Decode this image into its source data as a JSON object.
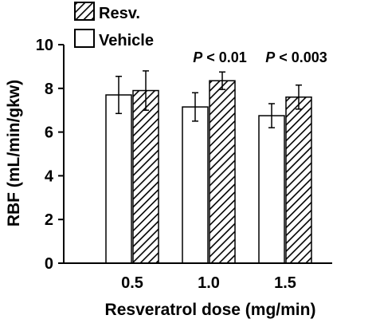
{
  "chart_data": {
    "type": "bar",
    "xlabel": "Resveratrol dose (mg/min)",
    "ylabel": "RBF (mL/min/gkw)",
    "ylim": [
      0,
      10
    ],
    "yticks": [
      0,
      2,
      4,
      6,
      8,
      10
    ],
    "categories": [
      "0.5",
      "1.0",
      "1.5"
    ],
    "series": [
      {
        "name": "Vehicle",
        "fill": "open",
        "values": [
          7.7,
          7.15,
          6.75
        ],
        "errors": [
          0.85,
          0.65,
          0.55
        ]
      },
      {
        "name": "Resv.",
        "fill": "hatched",
        "values": [
          7.9,
          8.35,
          7.6
        ],
        "errors": [
          0.9,
          0.4,
          0.55
        ]
      }
    ],
    "annotations": [
      {
        "category": "1.0",
        "p_label": "P",
        "text": " < 0.01"
      },
      {
        "category": "1.5",
        "p_label": "P",
        "text": " < 0.003"
      }
    ],
    "legend": {
      "placement": "top-left",
      "entries": [
        {
          "label": "Resv.",
          "fill": "hatched"
        },
        {
          "label": "Vehicle",
          "fill": "open"
        }
      ]
    },
    "colors": {
      "stroke": "#000000",
      "open_fill": "#ffffff"
    }
  }
}
